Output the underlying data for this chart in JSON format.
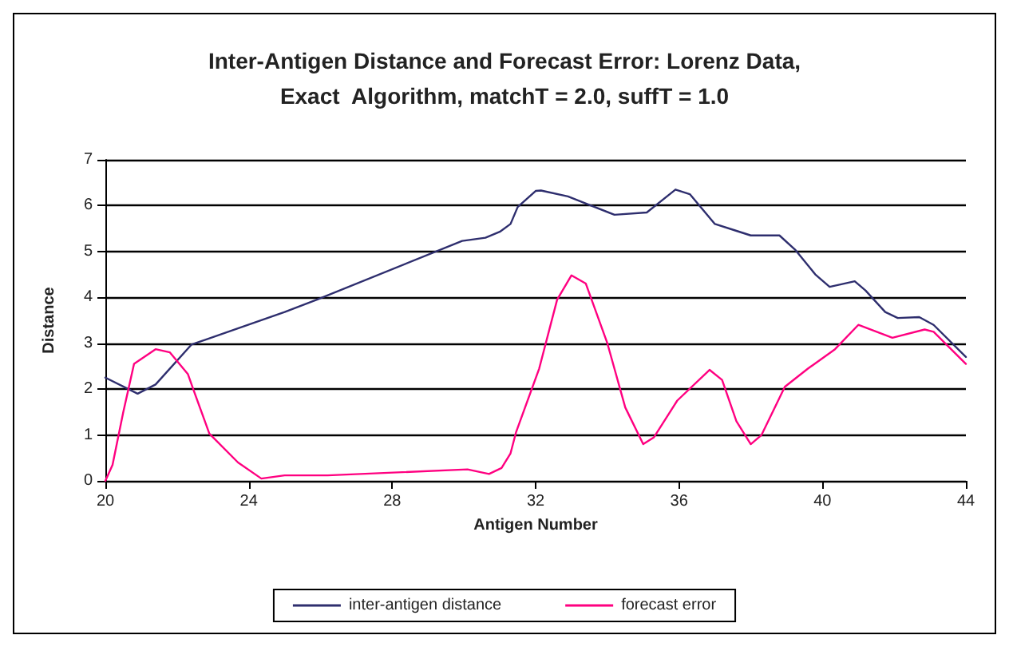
{
  "chart_data": {
    "type": "line",
    "title": "Inter-Antigen Distance and Forecast Error: Lorenz Data,\nExact  Algorithm, matchT = 2.0, suffT = 1.0",
    "xlabel": "Antigen Number",
    "ylabel": "Distance",
    "xlim": [
      20,
      44
    ],
    "xticks": [
      20,
      24,
      28,
      32,
      36,
      40,
      44
    ],
    "ylim": [
      0,
      7
    ],
    "yticks": [
      0,
      1,
      2,
      3,
      4,
      5,
      6,
      7
    ],
    "grid": "y",
    "legend": "bottom",
    "marker": "none",
    "line_style": "solid",
    "series": [
      {
        "name": "inter-antigen distance",
        "color": "#2e2e6e",
        "x": [
          20,
          20.9,
          21.4,
          22.4,
          25,
          25.9,
          29.95,
          30.6,
          31,
          31.3,
          31.5,
          32,
          32.15,
          32.9,
          34.2,
          35.1,
          35.9,
          36.3,
          37,
          37.6,
          38,
          38.8,
          39.25,
          39.8,
          40.2,
          40.9,
          41.2,
          41.75,
          42.1,
          42.7,
          43.1,
          44
        ],
        "values": [
          2.25,
          1.9,
          2.1,
          2.97,
          3.68,
          3.95,
          5.23,
          5.3,
          5.43,
          5.6,
          5.97,
          6.32,
          6.33,
          6.2,
          5.8,
          5.85,
          6.35,
          6.25,
          5.6,
          5.45,
          5.35,
          5.35,
          5.03,
          4.5,
          4.23,
          4.35,
          4.15,
          3.68,
          3.55,
          3.57,
          3.4,
          2.7
        ]
      },
      {
        "name": "forecast error",
        "color": "#ff0080",
        "x": [
          20,
          20.2,
          20.5,
          20.8,
          21.4,
          21.8,
          22.3,
          22.45,
          22.9,
          23.7,
          24.35,
          25,
          26.2,
          30.1,
          30.7,
          31.05,
          31.3,
          31.45,
          32.1,
          32.6,
          33,
          33.4,
          34,
          34.5,
          35,
          35.3,
          35.95,
          36.85,
          37.2,
          37.6,
          38,
          38.3,
          38.95,
          39.6,
          40.35,
          41,
          41.95,
          42.85,
          43.1,
          44
        ],
        "values": [
          0,
          0.35,
          1.5,
          2.55,
          2.87,
          2.8,
          2.33,
          2,
          1.03,
          0.4,
          0.05,
          0.12,
          0.12,
          0.25,
          0.15,
          0.28,
          0.6,
          1.05,
          2.45,
          3.95,
          4.48,
          4.3,
          3,
          1.6,
          0.8,
          0.95,
          1.75,
          2.42,
          2.2,
          1.3,
          0.8,
          1,
          2.05,
          2.45,
          2.87,
          3.4,
          3.12,
          3.3,
          3.25,
          2.55
        ]
      }
    ]
  }
}
